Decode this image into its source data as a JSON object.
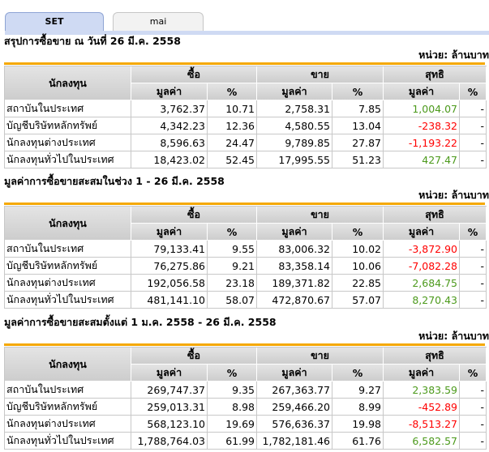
{
  "tabs": [
    {
      "label": "SET",
      "active": true
    },
    {
      "label": "mai",
      "active": false
    }
  ],
  "colors": {
    "positive": "#4c9a1c",
    "negative": "#ff0000",
    "accent_bar": "#f5a800"
  },
  "headers": {
    "investor": "นักลงทุน",
    "buy": "ซื้อ",
    "sell": "ขาย",
    "net": "สุทธิ",
    "value": "มูลค่า",
    "pct": "%"
  },
  "sections": [
    {
      "title": "สรุปการซื้อขาย ณ วันที่ 26 มี.ค. 2558",
      "unit": "หน่วย: ล้านบาท",
      "rows": [
        {
          "name": "สถาบันในประเทศ",
          "buy": "3,762.37",
          "buy_pct": "10.71",
          "sell": "2,758.31",
          "sell_pct": "7.85",
          "net": "1,004.07",
          "net_pct": "-",
          "sign": "pos"
        },
        {
          "name": "บัญชีบริษัทหลักทรัพย์",
          "buy": "4,342.23",
          "buy_pct": "12.36",
          "sell": "4,580.55",
          "sell_pct": "13.04",
          "net": "-238.32",
          "net_pct": "-",
          "sign": "neg"
        },
        {
          "name": "นักลงทุนต่างประเทศ",
          "buy": "8,596.63",
          "buy_pct": "24.47",
          "sell": "9,789.85",
          "sell_pct": "27.87",
          "net": "-1,193.22",
          "net_pct": "-",
          "sign": "neg"
        },
        {
          "name": "นักลงทุนทั่วไปในประเทศ",
          "buy": "18,423.02",
          "buy_pct": "52.45",
          "sell": "17,995.55",
          "sell_pct": "51.23",
          "net": "427.47",
          "net_pct": "-",
          "sign": "pos"
        }
      ]
    },
    {
      "title": "มูลค่าการซื้อขายสะสมในช่วง 1 - 26 มี.ค. 2558",
      "unit": "หน่วย: ล้านบาท",
      "rows": [
        {
          "name": "สถาบันในประเทศ",
          "buy": "79,133.41",
          "buy_pct": "9.55",
          "sell": "83,006.32",
          "sell_pct": "10.02",
          "net": "-3,872.90",
          "net_pct": "-",
          "sign": "neg"
        },
        {
          "name": "บัญชีบริษัทหลักทรัพย์",
          "buy": "76,275.86",
          "buy_pct": "9.21",
          "sell": "83,358.14",
          "sell_pct": "10.06",
          "net": "-7,082.28",
          "net_pct": "-",
          "sign": "neg"
        },
        {
          "name": "นักลงทุนต่างประเทศ",
          "buy": "192,056.58",
          "buy_pct": "23.18",
          "sell": "189,371.82",
          "sell_pct": "22.85",
          "net": "2,684.75",
          "net_pct": "-",
          "sign": "pos"
        },
        {
          "name": "นักลงทุนทั่วไปในประเทศ",
          "buy": "481,141.10",
          "buy_pct": "58.07",
          "sell": "472,870.67",
          "sell_pct": "57.07",
          "net": "8,270.43",
          "net_pct": "-",
          "sign": "pos"
        }
      ]
    },
    {
      "title": "มูลค่าการซื้อขายสะสมตั้งแต่ 1 ม.ค. 2558 - 26 มี.ค. 2558",
      "unit": "หน่วย: ล้านบาท",
      "rows": [
        {
          "name": "สถาบันในประเทศ",
          "buy": "269,747.37",
          "buy_pct": "9.35",
          "sell": "267,363.77",
          "sell_pct": "9.27",
          "net": "2,383.59",
          "net_pct": "-",
          "sign": "pos"
        },
        {
          "name": "บัญชีบริษัทหลักทรัพย์",
          "buy": "259,013.31",
          "buy_pct": "8.98",
          "sell": "259,466.20",
          "sell_pct": "8.99",
          "net": "-452.89",
          "net_pct": "-",
          "sign": "neg"
        },
        {
          "name": "นักลงทุนต่างประเทศ",
          "buy": "568,123.10",
          "buy_pct": "19.69",
          "sell": "576,636.37",
          "sell_pct": "19.98",
          "net": "-8,513.27",
          "net_pct": "-",
          "sign": "neg"
        },
        {
          "name": "นักลงทุนทั่วไปในประเทศ",
          "buy": "1,788,764.03",
          "buy_pct": "61.99",
          "sell": "1,782,181.46",
          "sell_pct": "61.76",
          "net": "6,582.57",
          "net_pct": "-",
          "sign": "pos"
        }
      ]
    }
  ]
}
